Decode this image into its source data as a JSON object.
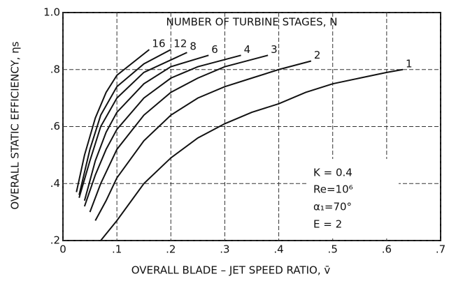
{
  "chart_data": {
    "type": "line",
    "title": "NUMBER OF TURBINE STAGES, N",
    "x_label": "OVERALL BLADE – JET SPEED RATIO, v̄",
    "y_label": "OVERALL STATIC EFFICIENCY, ηs",
    "annotations": [
      "K = 0.4",
      "Re=10⁶",
      "α₁=70°",
      "E = 2"
    ],
    "xlim": [
      0,
      0.7
    ],
    "xticks": [
      0,
      {
        "value": 0.1,
        "label": ".1"
      },
      {
        "value": 0.2,
        "label": ".2"
      },
      {
        "value": 0.3,
        "label": ".3"
      },
      {
        "value": 0.4,
        "label": ".4"
      },
      {
        "value": 0.5,
        "label": ".5"
      },
      {
        "value": 0.6,
        "label": ".6"
      },
      {
        "value": 0.7,
        "label": ".7"
      }
    ],
    "ylim": [
      0.2,
      1.0
    ],
    "yticks": [
      {
        "value": 0.2,
        "label": ".2"
      },
      {
        "value": 0.4,
        "label": ".4"
      },
      {
        "value": 0.6,
        "label": ".6"
      },
      {
        "value": 0.8,
        "label": ".8"
      },
      {
        "value": 1.0,
        "label": "1.0"
      }
    ],
    "grid": true,
    "series": [
      {
        "name": "1",
        "color": "#111",
        "x": [
          0.07,
          0.1,
          0.15,
          0.2,
          0.25,
          0.3,
          0.35,
          0.4,
          0.45,
          0.5,
          0.55,
          0.6,
          0.63
        ],
        "values": [
          0.2,
          0.27,
          0.4,
          0.49,
          0.56,
          0.61,
          0.65,
          0.68,
          0.72,
          0.75,
          0.77,
          0.79,
          0.8
        ]
      },
      {
        "name": "2",
        "color": "#111",
        "x": [
          0.06,
          0.08,
          0.1,
          0.15,
          0.2,
          0.25,
          0.3,
          0.35,
          0.4,
          0.46
        ],
        "values": [
          0.27,
          0.34,
          0.42,
          0.55,
          0.64,
          0.7,
          0.74,
          0.77,
          0.8,
          0.83
        ]
      },
      {
        "name": "3",
        "color": "#111",
        "x": [
          0.05,
          0.07,
          0.1,
          0.15,
          0.2,
          0.25,
          0.3,
          0.38
        ],
        "values": [
          0.3,
          0.4,
          0.52,
          0.64,
          0.72,
          0.77,
          0.81,
          0.85
        ]
      },
      {
        "name": "4",
        "color": "#111",
        "x": [
          0.04,
          0.06,
          0.08,
          0.1,
          0.15,
          0.2,
          0.25,
          0.33
        ],
        "values": [
          0.32,
          0.43,
          0.52,
          0.59,
          0.7,
          0.77,
          0.81,
          0.85
        ]
      },
      {
        "name": "6",
        "color": "#111",
        "x": [
          0.04,
          0.06,
          0.08,
          0.1,
          0.15,
          0.2,
          0.27
        ],
        "values": [
          0.34,
          0.48,
          0.58,
          0.65,
          0.75,
          0.81,
          0.85
        ]
      },
      {
        "name": "8",
        "color": "#111",
        "x": [
          0.03,
          0.05,
          0.07,
          0.1,
          0.15,
          0.23
        ],
        "values": [
          0.35,
          0.48,
          0.6,
          0.7,
          0.79,
          0.86
        ]
      },
      {
        "name": "12",
        "color": "#111",
        "x": [
          0.03,
          0.05,
          0.07,
          0.1,
          0.15,
          0.2
        ],
        "values": [
          0.36,
          0.52,
          0.64,
          0.74,
          0.82,
          0.87
        ]
      },
      {
        "name": "16",
        "color": "#111",
        "x": [
          0.025,
          0.04,
          0.06,
          0.08,
          0.1,
          0.16
        ],
        "values": [
          0.37,
          0.5,
          0.63,
          0.72,
          0.78,
          0.87
        ]
      }
    ]
  }
}
